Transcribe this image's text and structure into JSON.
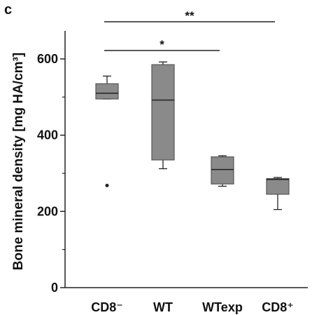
{
  "panel_label": "c",
  "chart_data": {
    "type": "box",
    "title": "",
    "xlabel": "",
    "ylabel": "Bone mineral density [mg HA/cm³]",
    "ylim": [
      0,
      660
    ],
    "yticks": [
      0,
      200,
      400,
      600
    ],
    "categories": [
      "CD8⁻",
      "WT",
      "WTexp",
      "CD8⁺"
    ],
    "boxes": [
      {
        "category": "CD8⁻",
        "whisker_low": 495,
        "q1": 495,
        "median": 510,
        "q3": 535,
        "whisker_high": 555,
        "outliers": [
          268
        ]
      },
      {
        "category": "WT",
        "whisker_low": 312,
        "q1": 335,
        "median": 492,
        "q3": 585,
        "whisker_high": 592,
        "outliers": []
      },
      {
        "category": "WTexp",
        "whisker_low": 266,
        "q1": 272,
        "median": 310,
        "q3": 343,
        "whisker_high": 346,
        "outliers": []
      },
      {
        "category": "CD8⁺",
        "whisker_low": 205,
        "q1": 245,
        "median": 284,
        "q3": 286,
        "whisker_high": 289,
        "outliers": []
      }
    ],
    "significance": [
      {
        "from": "CD8⁻",
        "to": "WTexp",
        "label": "*"
      },
      {
        "from": "CD8⁻",
        "to": "CD8⁺",
        "label": "**"
      }
    ],
    "box_color": "#8a8a8a",
    "line_color": "#222222"
  }
}
